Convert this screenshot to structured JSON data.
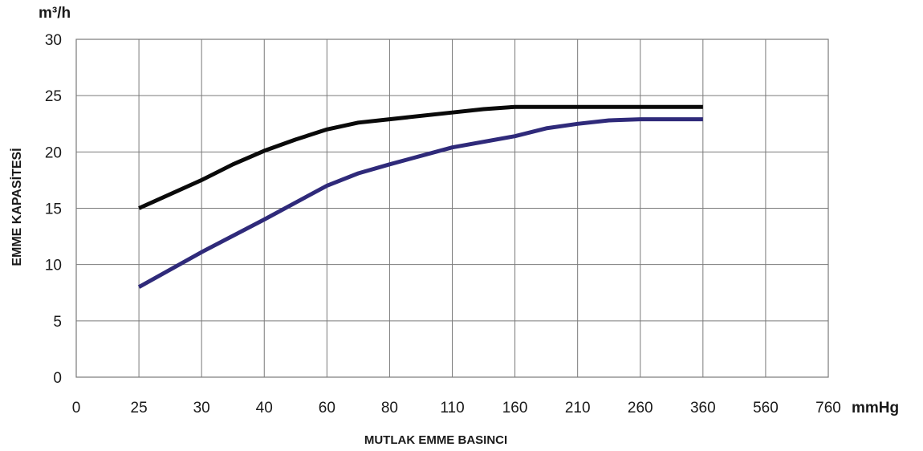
{
  "chart_data": {
    "type": "line",
    "ylabel": "EMME KAPASİTESİ",
    "yunit": "m³/h",
    "xlabel": "MUTLAK EMME BASINCI",
    "xunit": "mmHg",
    "categories": [
      "0",
      "25",
      "30",
      "40",
      "60",
      "80",
      "110",
      "160",
      "210",
      "260",
      "360",
      "560",
      "760"
    ],
    "y_ticks": [
      "0",
      "5",
      "10",
      "15",
      "20",
      "25",
      "30"
    ],
    "ylim": [
      0,
      30
    ],
    "grid": true,
    "colors": {
      "grid": "#7a7a7a",
      "text": "#1a1a1a"
    },
    "series": [
      {
        "color": "#0a0a0a",
        "points": [
          {
            "x": 1,
            "y": 15.0
          },
          {
            "x": 2,
            "y": 17.5
          },
          {
            "x": 2.5,
            "y": 18.9
          },
          {
            "x": 3,
            "y": 20.1
          },
          {
            "x": 3.5,
            "y": 21.1
          },
          {
            "x": 4,
            "y": 22.0
          },
          {
            "x": 4.5,
            "y": 22.6
          },
          {
            "x": 5,
            "y": 22.9
          },
          {
            "x": 6,
            "y": 23.5
          },
          {
            "x": 6.5,
            "y": 23.8
          },
          {
            "x": 7,
            "y": 24.0
          },
          {
            "x": 8,
            "y": 24.0
          },
          {
            "x": 9,
            "y": 24.0
          },
          {
            "x": 10,
            "y": 24.0
          }
        ]
      },
      {
        "color": "#2f2a7a",
        "points": [
          {
            "x": 1,
            "y": 8.0
          },
          {
            "x": 2,
            "y": 11.1
          },
          {
            "x": 3,
            "y": 14.0
          },
          {
            "x": 4,
            "y": 17.0
          },
          {
            "x": 4.5,
            "y": 18.1
          },
          {
            "x": 5,
            "y": 18.9
          },
          {
            "x": 6,
            "y": 20.4
          },
          {
            "x": 7,
            "y": 21.4
          },
          {
            "x": 7.5,
            "y": 22.1
          },
          {
            "x": 8,
            "y": 22.5
          },
          {
            "x": 8.5,
            "y": 22.8
          },
          {
            "x": 9,
            "y": 22.9
          },
          {
            "x": 10,
            "y": 22.9
          }
        ]
      }
    ]
  }
}
